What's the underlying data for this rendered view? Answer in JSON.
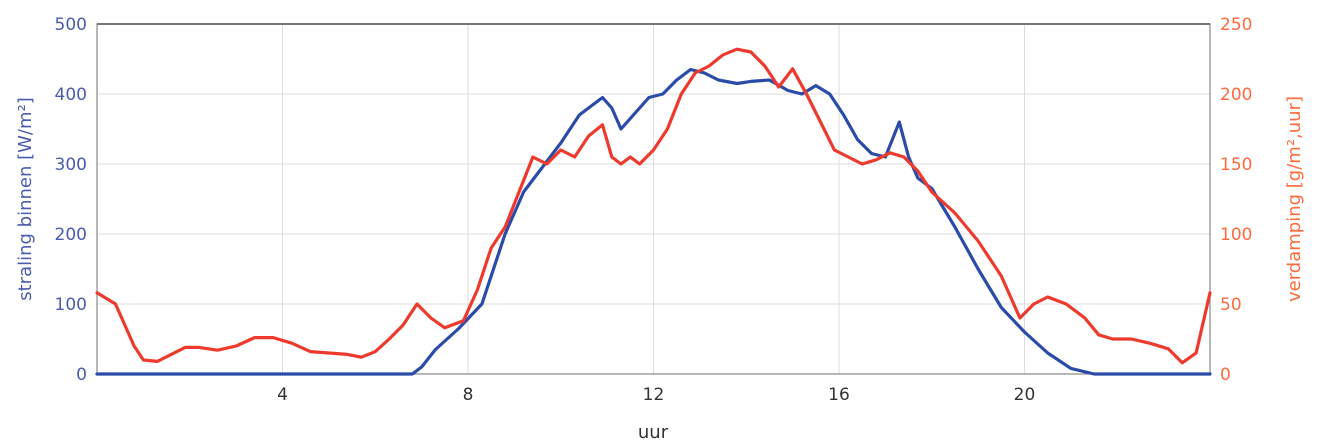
{
  "chart_data": {
    "type": "line",
    "xlabel": "uur",
    "ylabel_left": "straling binnen [W/m²]",
    "ylabel_right": "verdamping [g/m²,uur]",
    "xlim": [
      0,
      24
    ],
    "ylim_left": [
      0,
      500
    ],
    "ylim_right": [
      0,
      250
    ],
    "x_ticks": [
      4,
      8,
      12,
      16,
      20
    ],
    "y_ticks_left": [
      0,
      100,
      200,
      300,
      400,
      500
    ],
    "y_ticks_right": [
      0,
      50,
      100,
      150,
      200,
      250
    ],
    "grid": true,
    "colors": {
      "straling": "#2b4ba8",
      "verdamping": "#ee3a2c",
      "left_axis": "#4a5cb0",
      "right_axis": "#ff6a3d"
    },
    "series": [
      {
        "axis": "left",
        "x": [
          0,
          6.8,
          7.0,
          7.3,
          7.8,
          8.3,
          8.8,
          9.2,
          9.6,
          10.0,
          10.4,
          10.7,
          10.9,
          11.1,
          11.3,
          11.5,
          11.7,
          11.9,
          12.2,
          12.5,
          12.8,
          13.1,
          13.4,
          13.8,
          14.1,
          14.5,
          14.9,
          15.2,
          15.5,
          15.8,
          16.1,
          16.4,
          16.7,
          17.0,
          17.3,
          17.5,
          17.7,
          18.0,
          18.5,
          19.0,
          19.5,
          20.0,
          20.5,
          21.0,
          21.5,
          22.0,
          24
        ],
        "values": [
          0,
          0,
          10,
          35,
          65,
          100,
          200,
          260,
          295,
          330,
          370,
          385,
          395,
          380,
          350,
          365,
          380,
          395,
          400,
          420,
          435,
          430,
          420,
          415,
          418,
          420,
          405,
          400,
          412,
          400,
          370,
          335,
          315,
          310,
          360,
          310,
          280,
          265,
          210,
          150,
          95,
          60,
          30,
          8,
          0,
          0,
          0
        ]
      },
      {
        "axis": "right",
        "x": [
          0,
          0.4,
          0.8,
          1.0,
          1.3,
          1.6,
          1.9,
          2.2,
          2.6,
          3.0,
          3.4,
          3.8,
          4.2,
          4.6,
          5.0,
          5.4,
          5.7,
          6.0,
          6.3,
          6.6,
          6.9,
          7.2,
          7.5,
          7.9,
          8.2,
          8.5,
          8.8,
          9.1,
          9.4,
          9.7,
          10.0,
          10.3,
          10.6,
          10.9,
          11.1,
          11.3,
          11.5,
          11.7,
          12.0,
          12.3,
          12.6,
          12.9,
          13.2,
          13.5,
          13.8,
          14.1,
          14.4,
          14.7,
          15.0,
          15.3,
          15.6,
          15.9,
          16.2,
          16.5,
          16.8,
          17.1,
          17.4,
          17.7,
          18.0,
          18.5,
          19.0,
          19.5,
          19.9,
          20.2,
          20.5,
          20.9,
          21.3,
          21.6,
          21.9,
          22.3,
          22.7,
          23.1,
          23.4,
          23.7,
          24.0
        ],
        "values": [
          58,
          50,
          20,
          10,
          9,
          14,
          19,
          19,
          17,
          20,
          26,
          26,
          22,
          16,
          15,
          14,
          12,
          16,
          25,
          35,
          50,
          40,
          33,
          38,
          60,
          90,
          105,
          130,
          155,
          150,
          160,
          155,
          170,
          178,
          155,
          150,
          155,
          150,
          160,
          175,
          200,
          215,
          220,
          228,
          232,
          230,
          220,
          205,
          218,
          200,
          180,
          160,
          155,
          150,
          153,
          158,
          155,
          145,
          130,
          115,
          95,
          70,
          40,
          50,
          55,
          50,
          40,
          28,
          25,
          25,
          22,
          18,
          8,
          15,
          58
        ]
      }
    ]
  }
}
